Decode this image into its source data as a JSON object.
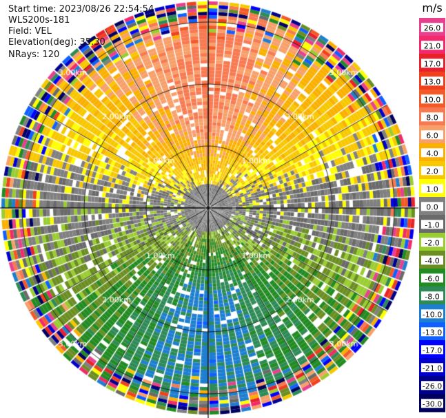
{
  "header": {
    "start_time": "Start time: 2023/08/26 22:54:54",
    "instrument": "WLS200s-181",
    "field": "Field: VEL",
    "elevation": "Elevation(deg): 35.30",
    "nrays": "NRays: 120"
  },
  "colorbar": {
    "unit": "m/s",
    "ticks": [
      "26.0",
      "21.0",
      "17.0",
      "13.0",
      "10.0",
      "8.0",
      "6.0",
      "4.0",
      "2.0",
      "1.0",
      "0.0",
      "-1.0",
      "-2.0",
      "-4.0",
      "-6.0",
      "-8.0",
      "-10.0",
      "-13.0",
      "-17.0",
      "-21.0",
      "-26.0",
      "-30.0"
    ],
    "colors": [
      "#e8408f",
      "#f22a6b",
      "#e8222a",
      "#f0401e",
      "#f45a28",
      "#f77a52",
      "#f7a06a",
      "#f9b000",
      "#f7c800",
      "#ffff00",
      "#808080",
      "#6a6a6a",
      "#9acd32",
      "#6b8e23",
      "#228b22",
      "#2e8b57",
      "#1e7fd0",
      "#1060ff",
      "#0000ff",
      "#0000cd",
      "#00008b",
      "#000060"
    ]
  },
  "chart_data": {
    "type": "heatmap",
    "projection": "polar PPI",
    "field": "VEL",
    "units": "m/s",
    "n_rays": 120,
    "elevation_deg": 35.3,
    "range_rings_km": [
      "1.00km",
      "2.00km",
      "3.00km"
    ],
    "ring_label_angles": [
      "NW",
      "NE",
      "SE",
      "SW"
    ],
    "velocity_pattern": [
      {
        "sector": "N (upper half, inner)",
        "velocity_range_ms": [
          6.0,
          13.0
        ]
      },
      {
        "sector": "W and E flanks",
        "velocity_range_ms": [
          1.0,
          4.0
        ]
      },
      {
        "sector": "near center / horizontal band",
        "velocity_range_ms": [
          -1.0,
          0.0
        ]
      },
      {
        "sector": "S (lower half, inner)",
        "velocity_range_ms": [
          -10.0,
          -2.0
        ]
      },
      {
        "sector": "outer ring (> ~3.3 km)",
        "velocity_range_ms": [
          -30.0,
          26.0
        ],
        "note": "noise"
      }
    ]
  }
}
